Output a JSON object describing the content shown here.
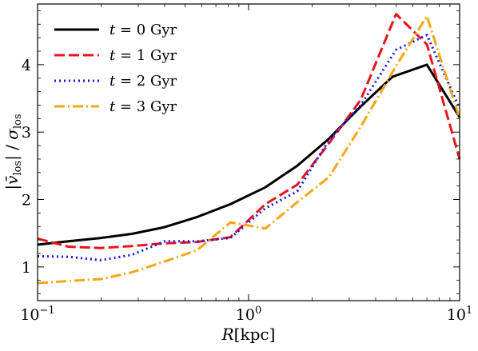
{
  "chart_data": {
    "type": "line",
    "xscale": "log",
    "xlim": [
      0.1,
      10
    ],
    "ylim": [
      0.5,
      4.9
    ],
    "xlabel": "R[kpc]",
    "ylabel": "|v̄_los| / σ_los",
    "x_ticks": [
      {
        "value": 0.1,
        "mant": "10",
        "exp": "−1"
      },
      {
        "value": 1,
        "mant": "10",
        "exp": "0"
      },
      {
        "value": 10,
        "mant": "10",
        "exp": "1"
      }
    ],
    "y_ticks": [
      1,
      2,
      3,
      4
    ],
    "legend_position": "top-left",
    "grid": false,
    "series": [
      {
        "name": "t = 0 Gyr",
        "label_prefix": "t",
        "label_value": "= 0 Gyr",
        "color": "#000000",
        "dash": "",
        "x": [
          0.1,
          0.14,
          0.2,
          0.28,
          0.4,
          0.57,
          0.82,
          1.2,
          1.7,
          2.4,
          3.4,
          4.8,
          7.0,
          10.0
        ],
        "y": [
          1.33,
          1.38,
          1.43,
          1.49,
          1.59,
          1.74,
          1.93,
          2.18,
          2.5,
          2.9,
          3.38,
          3.82,
          4.0,
          3.22
        ]
      },
      {
        "name": "t = 1 Gyr",
        "label_prefix": "t",
        "label_value": "= 1 Gyr",
        "color": "#e8141c",
        "dash": "13,5",
        "x": [
          0.1,
          0.14,
          0.2,
          0.28,
          0.4,
          0.57,
          0.82,
          1.2,
          1.7,
          2.4,
          3.4,
          5.0,
          7.0,
          10.0
        ],
        "y": [
          1.42,
          1.3,
          1.28,
          1.31,
          1.35,
          1.37,
          1.44,
          1.93,
          2.22,
          2.83,
          3.48,
          4.75,
          4.3,
          2.6
        ]
      },
      {
        "name": "t = 2 Gyr",
        "label_prefix": "t",
        "label_value": "= 2 Gyr",
        "color": "#1414f0",
        "dash": "2,4",
        "x": [
          0.1,
          0.14,
          0.2,
          0.28,
          0.4,
          0.57,
          0.82,
          1.2,
          1.7,
          2.4,
          3.4,
          5.0,
          7.0,
          10.0
        ],
        "y": [
          1.16,
          1.15,
          1.1,
          1.18,
          1.38,
          1.38,
          1.43,
          1.87,
          2.12,
          2.88,
          3.4,
          4.22,
          4.44,
          3.35
        ]
      },
      {
        "name": "t = 3 Gyr",
        "label_prefix": "t",
        "label_value": "= 3 Gyr",
        "color": "#f5a615",
        "dash": "13,4,2,4",
        "x": [
          0.1,
          0.14,
          0.2,
          0.28,
          0.4,
          0.57,
          0.82,
          0.9,
          1.2,
          1.7,
          2.4,
          3.4,
          5.0,
          7.0,
          10.0
        ],
        "y": [
          0.76,
          0.79,
          0.82,
          0.92,
          1.08,
          1.25,
          1.66,
          1.64,
          1.57,
          1.96,
          2.33,
          3.08,
          3.98,
          4.72,
          3.2
        ]
      }
    ]
  }
}
